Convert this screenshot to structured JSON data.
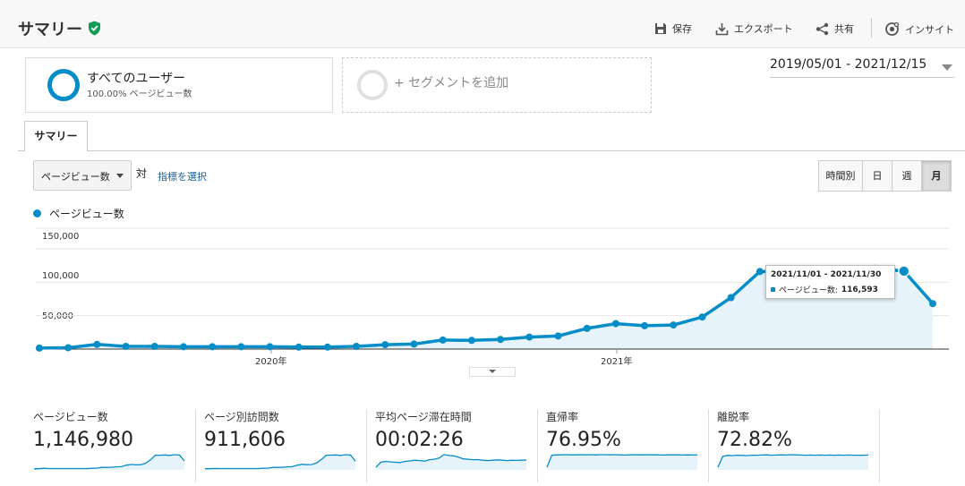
{
  "header": {
    "title": "サマリー",
    "actions": [
      {
        "label": "保存",
        "icon": "save-icon"
      },
      {
        "label": "エクスポート",
        "icon": "export-icon"
      },
      {
        "label": "共有",
        "icon": "share-icon"
      },
      {
        "label": "インサイト",
        "icon": "insight-icon"
      }
    ]
  },
  "segments": {
    "active": {
      "name": "すべてのユーザー",
      "detail": "100.00% ページビュー数"
    },
    "add_label": "+ セグメントを追加"
  },
  "date_range": "2019/05/01 - 2021/12/15",
  "tabs": [
    {
      "label": "サマリー",
      "active": true
    }
  ],
  "controls": {
    "metric_selected": "ページビュー数",
    "vs_label": "対",
    "choose_metric_label": "指標を選択",
    "granularity": [
      {
        "label": "時間別",
        "active": false
      },
      {
        "label": "日",
        "active": false
      },
      {
        "label": "週",
        "active": false
      },
      {
        "label": "月",
        "active": true
      }
    ]
  },
  "chart_data": {
    "type": "area",
    "series": [
      {
        "name": "ページビュー数",
        "color": "#058dc7",
        "values": [
          1500,
          2000,
          7000,
          4000,
          4000,
          3500,
          3500,
          3500,
          3500,
          3000,
          3000,
          4000,
          6500,
          7500,
          13500,
          13000,
          14500,
          18000,
          19500,
          31000,
          38000,
          35000,
          36000,
          48000,
          77000,
          116000,
          116000,
          118000,
          114000,
          121000,
          116593,
          68000
        ]
      }
    ],
    "y_ticks": [
      "150,000",
      "100,000",
      "50,000"
    ],
    "x_ticks": [
      "2020年",
      "2021年"
    ],
    "ylim": [
      0,
      150000
    ],
    "grid": true,
    "legend": "top-left"
  },
  "tooltip": {
    "date": "2021/11/01 - 2021/11/30",
    "label": "ページビュー数:",
    "value": "116,593"
  },
  "scorecards": [
    {
      "title": "ページビュー数",
      "value": "1,146,980",
      "spark": [
        2,
        2,
        5,
        3,
        3,
        3,
        3,
        3,
        3,
        3,
        3,
        3,
        5,
        6,
        11,
        11,
        12,
        15,
        16,
        26,
        32,
        29,
        30,
        40,
        64,
        96,
        96,
        98,
        95,
        100,
        97,
        56
      ]
    },
    {
      "title": "ページ別訪問数",
      "value": "911,606",
      "spark": [
        2,
        2,
        4,
        3,
        3,
        3,
        3,
        3,
        3,
        3,
        3,
        3,
        5,
        6,
        11,
        11,
        12,
        15,
        16,
        27,
        33,
        30,
        31,
        42,
        66,
        96,
        97,
        98,
        95,
        100,
        97,
        55
      ]
    },
    {
      "title": "平均ページ滞在時間",
      "value": "00:02:26",
      "spark": [
        10,
        40,
        45,
        42,
        40,
        38,
        45,
        48,
        52,
        50,
        47,
        55,
        58,
        65,
        85,
        80,
        78,
        70,
        60,
        58,
        55,
        56,
        52,
        50,
        52,
        54,
        52,
        50,
        52,
        51,
        52,
        53
      ]
    },
    {
      "title": "直帰率",
      "value": "76.95%",
      "spark": [
        10,
        80,
        82,
        82,
        83,
        82,
        82,
        83,
        82,
        83,
        82,
        83,
        83,
        82,
        83,
        82,
        81,
        82,
        83,
        82,
        82,
        83,
        82,
        82,
        81,
        82,
        82,
        82,
        81,
        82,
        81,
        82
      ]
    },
    {
      "title": "離脱率",
      "value": "72.82%",
      "spark": [
        10,
        70,
        75,
        74,
        76,
        75,
        74,
        76,
        76,
        77,
        78,
        76,
        77,
        78,
        77,
        79,
        78,
        77,
        76,
        77,
        76,
        77,
        76,
        77,
        76,
        77,
        76,
        77,
        76,
        76,
        76,
        77
      ]
    }
  ]
}
